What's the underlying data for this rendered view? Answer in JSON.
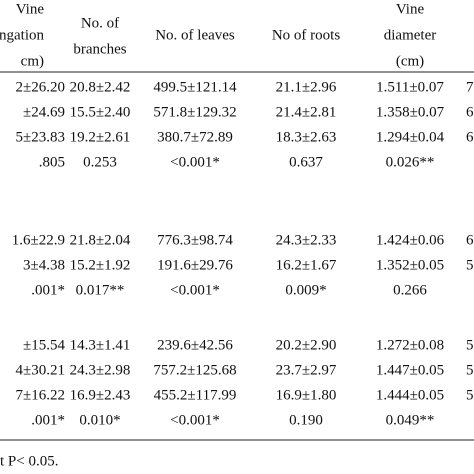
{
  "table": {
    "header": [
      [
        "Vine",
        "ngation",
        "cm)"
      ],
      [
        "No. of",
        "branches"
      ],
      [
        "No. of leaves"
      ],
      [
        "No of roots"
      ],
      [
        "Vine",
        "diameter",
        "(cm)"
      ]
    ],
    "rows": [
      [
        "2±26.20",
        "20.8±2.42",
        "499.5±121.14",
        "21.1±2.96",
        "1.511±0.07",
        "7"
      ],
      [
        "±24.69",
        "15.5±2.40",
        "571.8±129.32",
        "21.4±2.81",
        "1.358±0.07",
        "6"
      ],
      [
        "5±23.83",
        "19.2±2.61",
        "380.7±72.89",
        "18.3±2.63",
        "1.294±0.04",
        "6"
      ],
      [
        ".805",
        "0.253",
        "<0.001*",
        "0.637",
        "0.026**"
      ],
      [
        "1.6±22.9",
        "21.8±2.04",
        "776.3±98.74",
        "24.3±2.33",
        "1.424±0.06",
        "6"
      ],
      [
        "3±4.38",
        "15.2±1.92",
        "191.6±29.76",
        "16.2±1.67",
        "1.352±0.05",
        "5"
      ],
      [
        ".001*",
        "0.017**",
        "<0.001*",
        "0.009*",
        "0.266"
      ],
      [
        "±15.54",
        "14.3±1.41",
        "239.6±42.56",
        "20.2±2.90",
        "1.272±0.08",
        "5"
      ],
      [
        "4±30.21",
        "24.3±2.98",
        "757.2±125.68",
        "23.7±2.97",
        "1.447±0.05",
        "5"
      ],
      [
        "7±16.22",
        "16.9±2.43",
        "455.2±117.99",
        "16.9±1.80",
        "1.444±0.05",
        "5"
      ],
      [
        ".001*",
        "0.010*",
        "<0.001*",
        "0.190",
        "0.049**"
      ]
    ],
    "footnote": "t P< 0.05."
  }
}
